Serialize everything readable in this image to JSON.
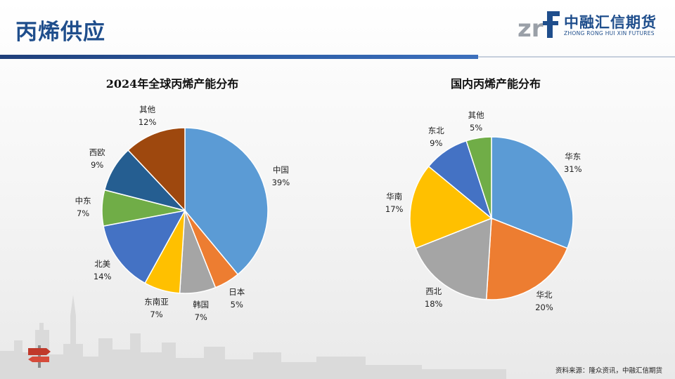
{
  "header": {
    "title": "丙烯供应",
    "logo_cn": "中融汇信期货",
    "logo_en": "ZHONG RONG HUI XIN FUTURES"
  },
  "colors": {
    "primary": "#1f4e8c",
    "accent": "#3d70bd"
  },
  "chart_data": [
    {
      "type": "pie",
      "title": "2024年全球丙烯产能分布",
      "unit": "%",
      "categories": [
        "中国",
        "日本",
        "韩国",
        "东南亚",
        "北美",
        "中东",
        "西欧",
        "其他"
      ],
      "values": [
        39,
        5,
        7,
        7,
        14,
        7,
        9,
        12
      ],
      "labels": [
        "39%",
        "5%",
        "7%",
        "7%",
        "14%",
        "7%",
        "9%",
        "12%"
      ],
      "colors": [
        "#5b9bd5",
        "#ed7d31",
        "#a5a5a5",
        "#ffc000",
        "#4472c4",
        "#70ad47",
        "#255e91",
        "#9e480e"
      ]
    },
    {
      "type": "pie",
      "title": "国内丙烯产能分布",
      "unit": "%",
      "categories": [
        "华东",
        "华北",
        "西北",
        "华南",
        "东北",
        "其他"
      ],
      "values": [
        31,
        20,
        18,
        17,
        9,
        5
      ],
      "labels": [
        "31%",
        "20%",
        "18%",
        "17%",
        "9%",
        "5%"
      ],
      "colors": [
        "#5b9bd5",
        "#ed7d31",
        "#a5a5a5",
        "#ffc000",
        "#4472c4",
        "#70ad47"
      ]
    }
  ],
  "footer": {
    "source": "资料来源：隆众资讯，中融汇信期货"
  }
}
